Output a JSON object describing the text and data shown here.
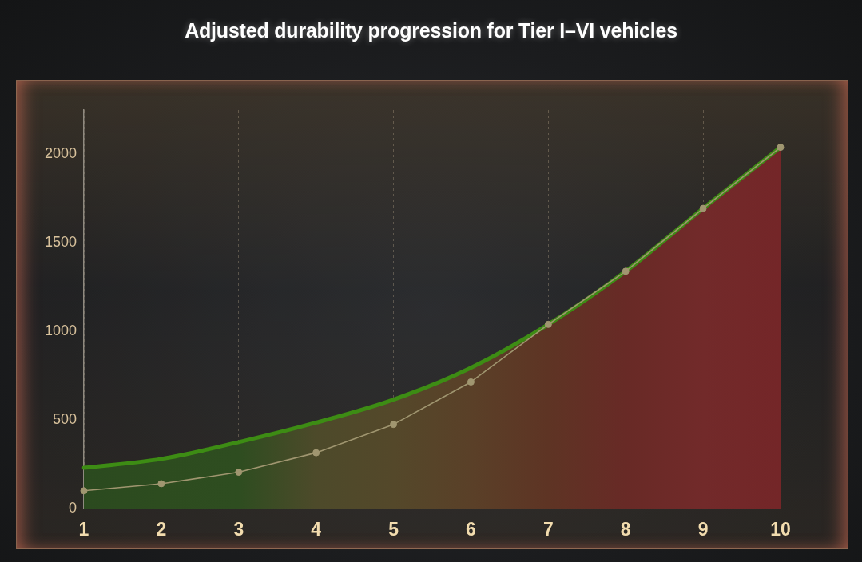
{
  "chart_data": {
    "type": "line",
    "title": "Adjusted durability progression for Tier I–VI vehicles",
    "categories": [
      "1",
      "2",
      "3",
      "4",
      "5",
      "6",
      "7",
      "8",
      "9",
      "10"
    ],
    "ylim": [
      0,
      2250
    ],
    "yticks": [
      0,
      500,
      1000,
      1500,
      2000
    ],
    "grid": "x",
    "series": [
      {
        "color": "#a09670",
        "marker": "circle",
        "values": [
          100,
          140,
          205,
          315,
          475,
          715,
          1040,
          1340,
          1695,
          2040
        ]
      },
      {
        "type": "area",
        "color": "#3d8c14",
        "marker": "none",
        "colors": [
          "#2b4a1f",
          "#2d4c1f",
          "#2e4d20",
          "#4d4a2a",
          "#54482a",
          "#5a4028",
          "#5e3424",
          "#682a26",
          "#722a2a",
          "#742628"
        ],
        "values": [
          230,
          280,
          375,
          485,
          615,
          795,
          1040,
          1340,
          1695,
          2040
        ]
      }
    ]
  }
}
